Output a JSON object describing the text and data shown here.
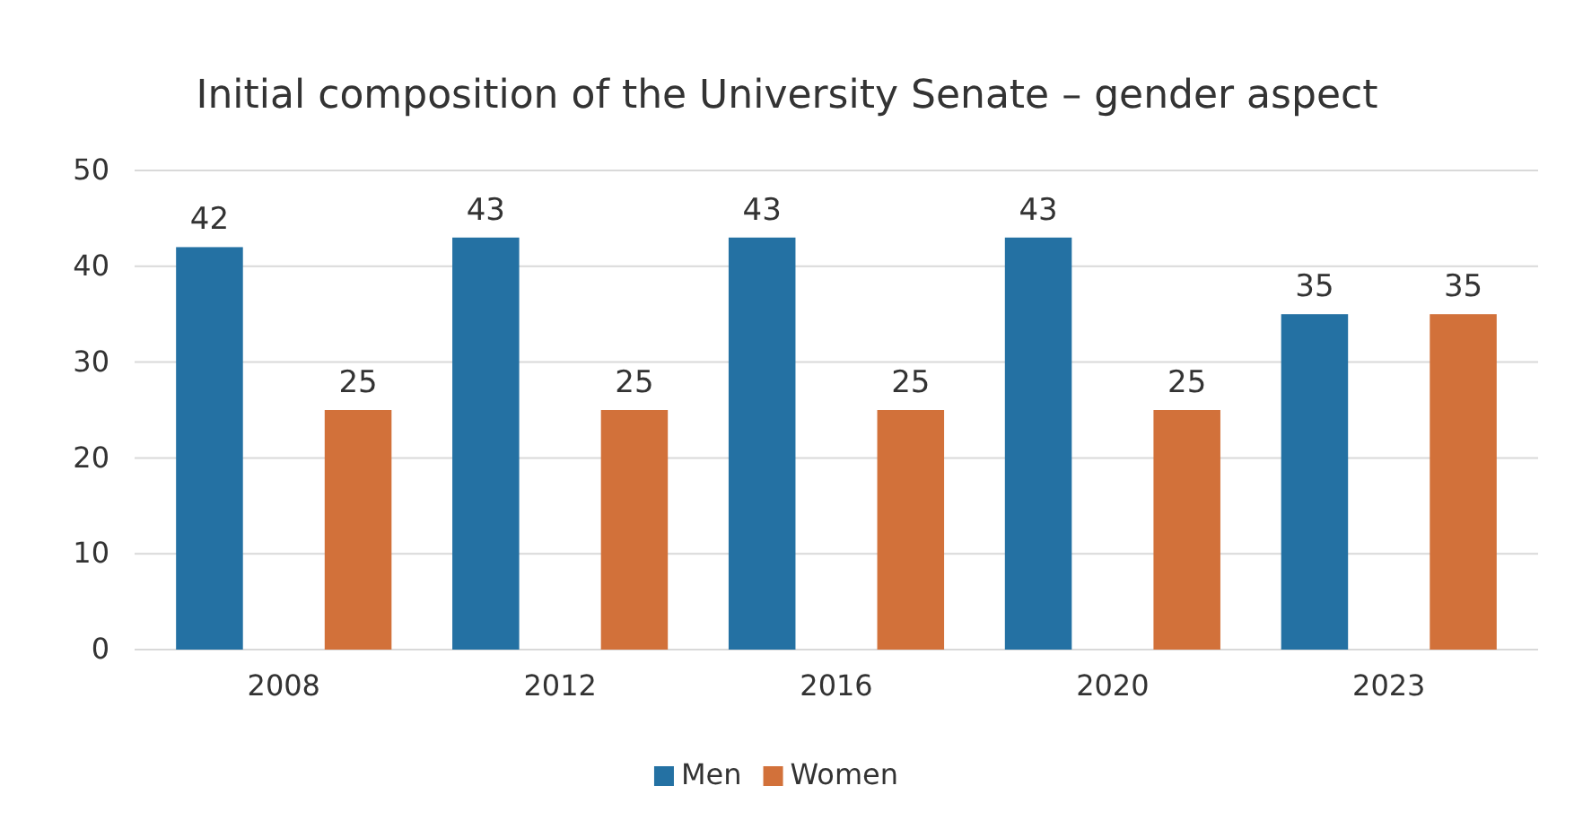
{
  "chart_data": {
    "type": "bar",
    "title": "Initial composition of the University Senate – gender aspect",
    "categories": [
      "2008",
      "2012",
      "2016",
      "2020",
      "2023"
    ],
    "series": [
      {
        "name": "Men",
        "color": "#2471a3",
        "values": [
          42,
          43,
          43,
          43,
          35
        ]
      },
      {
        "name": "Women",
        "color": "#d2713a",
        "values": [
          25,
          25,
          25,
          25,
          35
        ]
      }
    ],
    "ylim": [
      0,
      50
    ],
    "yticks": [
      0,
      10,
      20,
      30,
      40,
      50
    ],
    "grid": "y",
    "legend": "bottom",
    "data_labels": true
  }
}
